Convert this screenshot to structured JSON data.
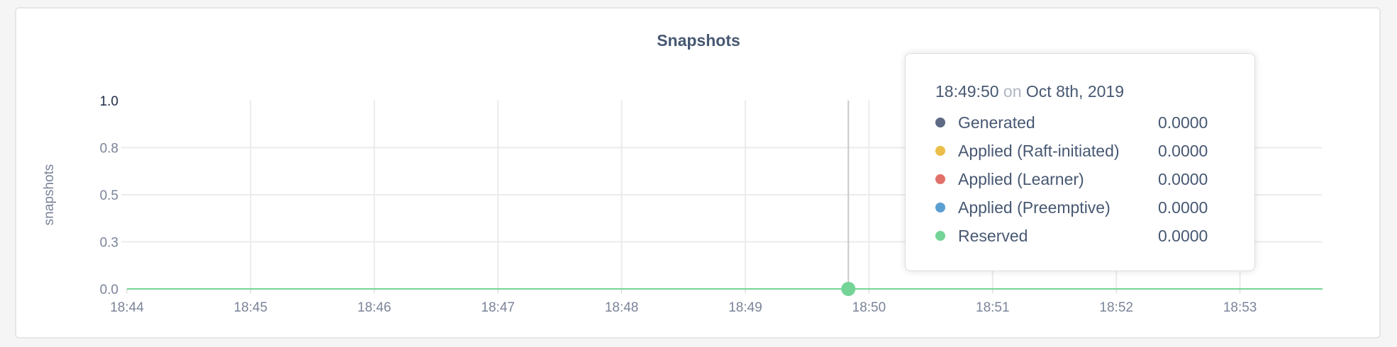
{
  "chart_data": {
    "type": "line",
    "title": "Snapshots",
    "ylabel": "snapshots",
    "xlabel": "",
    "ylim": [
      0,
      1
    ],
    "yticks": [
      0,
      0.25,
      0.5,
      0.75,
      1.0
    ],
    "ytick_labels": [
      "0.0",
      "0.3",
      "0.5",
      "0.8",
      "1.0"
    ],
    "xtick_labels": [
      "18:44",
      "18:45",
      "18:46",
      "18:47",
      "18:48",
      "18:49",
      "18:50",
      "18:51",
      "18:52",
      "18:53"
    ],
    "xlim": [
      "18:44",
      "18:53:40"
    ],
    "grid": true,
    "series": [
      {
        "name": "Generated",
        "color": "#5f6b85",
        "values": [
          0,
          0,
          0,
          0,
          0,
          0,
          0,
          0,
          0,
          0
        ]
      },
      {
        "name": "Applied (Raft-initiated)",
        "color": "#ebbe4a",
        "values": [
          0,
          0,
          0,
          0,
          0,
          0,
          0,
          0,
          0,
          0
        ]
      },
      {
        "name": "Applied (Learner)",
        "color": "#e2706a",
        "values": [
          0,
          0,
          0,
          0,
          0,
          0,
          0,
          0,
          0,
          0
        ]
      },
      {
        "name": "Applied (Preemptive)",
        "color": "#5b9fd1",
        "values": [
          0,
          0,
          0,
          0,
          0,
          0,
          0,
          0,
          0,
          0
        ]
      },
      {
        "name": "Reserved",
        "color": "#74d497",
        "values": [
          0,
          0,
          0,
          0,
          0,
          0,
          0,
          0,
          0,
          0
        ]
      }
    ],
    "hover_x": "18:49:50"
  },
  "tooltip": {
    "time": "18:49:50",
    "on": "on",
    "date": "Oct 8th, 2019",
    "rows": [
      {
        "label": "Generated",
        "value": "0.0000",
        "color": "#5f6b85"
      },
      {
        "label": "Applied (Raft-initiated)",
        "value": "0.0000",
        "color": "#ebbe4a"
      },
      {
        "label": "Applied (Learner)",
        "value": "0.0000",
        "color": "#e2706a"
      },
      {
        "label": "Applied (Preemptive)",
        "value": "0.0000",
        "color": "#5b9fd1"
      },
      {
        "label": "Reserved",
        "value": "0.0000",
        "color": "#74d497"
      }
    ]
  }
}
